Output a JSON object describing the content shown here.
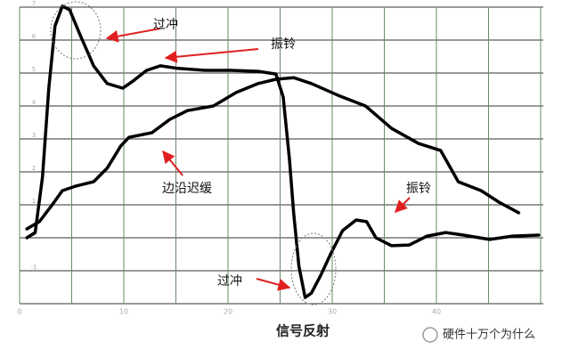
{
  "chart_data": {
    "type": "line",
    "title": "信号反射",
    "xlim": [
      0,
      50
    ],
    "ylim": [
      -2,
      7
    ],
    "xticks": [
      0,
      10,
      20,
      30,
      40
    ],
    "yticks": [
      -1,
      0,
      1,
      2,
      3,
      4,
      5,
      6,
      7
    ],
    "xgrid": [
      0,
      5,
      10,
      15,
      20,
      25,
      30,
      35,
      40,
      45,
      50
    ],
    "ygrid": [
      -2,
      -1,
      0,
      1,
      2,
      3,
      4,
      5,
      6,
      7
    ],
    "grid": true,
    "series": [
      {
        "color": "#000000",
        "x": [
          0.7,
          1.5,
          2.2,
          2.8,
          3.4,
          4.1,
          4.8,
          5.8,
          7.1,
          8.4,
          9.9,
          10.9,
          12.2,
          13.5,
          15.2,
          17.8,
          20.3,
          22.9,
          24.6,
          25.3,
          25.9,
          26.3,
          26.8,
          27.4,
          28.0,
          28.9,
          29.9,
          31.0,
          32.3,
          33.3,
          34.2,
          35.7,
          37.4,
          39.1,
          40.9,
          42.6,
          45.1,
          47.3,
          49.8
        ],
        "values": [
          0,
          0.16,
          1.84,
          4.54,
          6.43,
          7.03,
          6.92,
          6.16,
          5.22,
          4.68,
          4.54,
          4.76,
          5.08,
          5.22,
          5.14,
          5.08,
          5.08,
          5.05,
          4.97,
          4.27,
          2.38,
          0.76,
          -0.86,
          -1.81,
          -1.68,
          -1.14,
          -0.46,
          0.22,
          0.54,
          0.49,
          0,
          -0.24,
          -0.22,
          0.05,
          0.16,
          0.08,
          -0.05,
          0.05,
          0.08
        ]
      },
      {
        "color": "#000000",
        "x": [
          0.7,
          1.9,
          3.2,
          4.1,
          5.4,
          7.1,
          8.4,
          9.7,
          10.5,
          12.7,
          14.4,
          16.1,
          18.6,
          20.8,
          22.9,
          24.6,
          26.3,
          28.0,
          30.6,
          33.2,
          35.7,
          38.3,
          40.4,
          42.1,
          44.3,
          46.0,
          47.9
        ],
        "values": [
          0.27,
          0.49,
          1.03,
          1.43,
          1.57,
          1.7,
          2.11,
          2.78,
          3.05,
          3.19,
          3.59,
          3.86,
          4.0,
          4.41,
          4.68,
          4.81,
          4.86,
          4.68,
          4.32,
          4.0,
          3.32,
          2.86,
          2.65,
          1.7,
          1.43,
          1.08,
          0.76
        ]
      }
    ],
    "annotations": [
      "过冲",
      "振铃",
      "边沿迟缓",
      "振铃",
      "过冲"
    ],
    "watermark": "硬件十万个为什么"
  }
}
